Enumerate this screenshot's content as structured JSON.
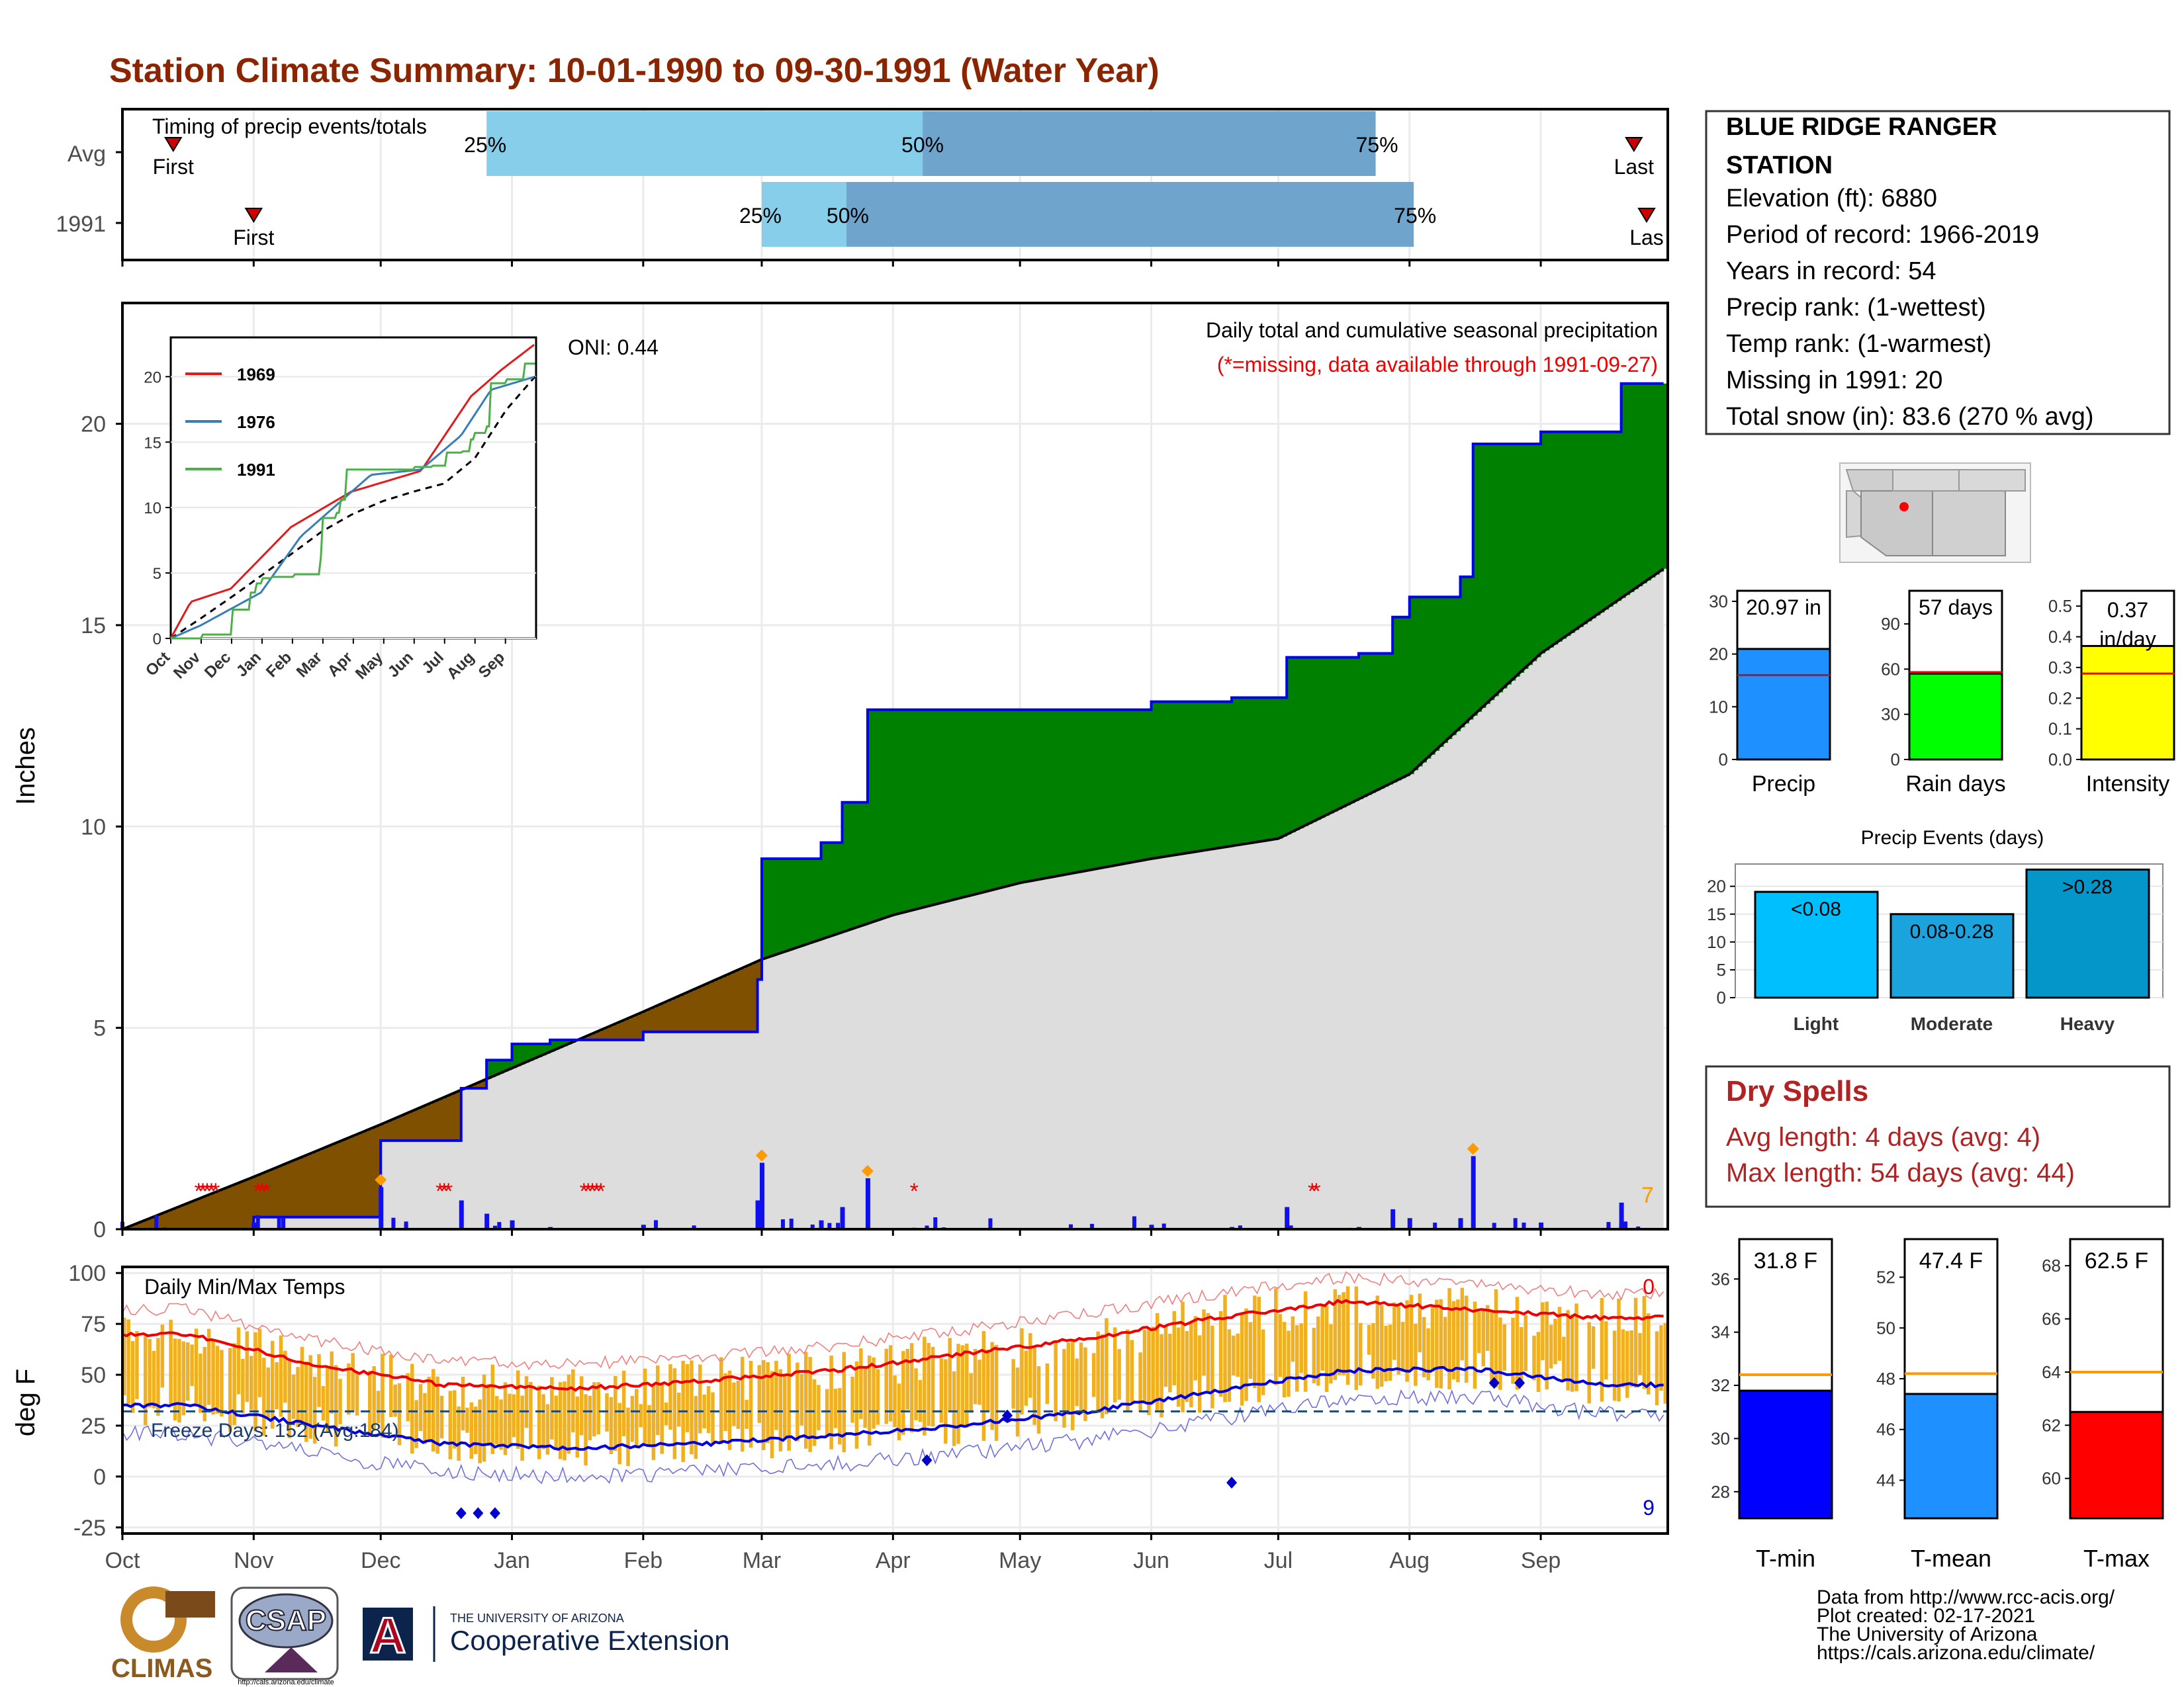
{
  "title": "Station Climate Summary: 10-01-1990 to 09-30-1991 (Water Year)",
  "colors": {
    "title": "#8b2500",
    "deficit": "#7f5000",
    "surplus": "#008000",
    "avg_cum": "#dddddd",
    "actual_cum": "#0000ee",
    "daily_bar": "#1010ee",
    "tmax_line": "#ee0000",
    "tmin_line": "#0000dd",
    "temp_bar": "#f0b020",
    "timing_light": "#87ceeb",
    "timing_dark": "#6fa5cd",
    "precip_box": "#1e90ff",
    "rain_box": "#00ff00",
    "intensity_box": "#ffff00",
    "light_evt": "#00bfff",
    "mod_evt": "#1aa3dd",
    "heavy_evt": "#0496c8",
    "tmin_box": "#0000ff",
    "tmean_box": "#1e90ff",
    "tmax_box": "#ff0000",
    "avg_line_bar": "#ff9900",
    "dry_spell": "#b22222"
  },
  "timing": {
    "title": "Timing of precip events/totals",
    "rows": [
      {
        "label": "Avg",
        "first_label": "First",
        "last_label": "Last",
        "first_date": "1990-10-13",
        "last_date": "1991-09-23",
        "p25_date": "1990-12-26",
        "p50_date": "1991-04-08",
        "p75_date": "1991-07-24",
        "p25": "25%",
        "p50": "50%",
        "p75": "75%"
      },
      {
        "label": "1991",
        "first_label": "First",
        "last_label": "Las",
        "first_date": "1990-11-01",
        "last_date": "1991-09-26",
        "p25_date": "1991-03-01",
        "p50_date": "1991-03-21",
        "p75_date": "1991-08-02",
        "p25": "25%",
        "p50": "50%",
        "p75": "75%"
      }
    ]
  },
  "precip_panel": {
    "ylabel": "Inches",
    "ylim": [
      0,
      23
    ],
    "yticks": [
      0,
      5,
      10,
      15,
      20
    ],
    "oni": "ONI: 0.44",
    "legend_title": "Daily total and cumulative seasonal precipitation",
    "missing_note": "(*=missing, data available through 1991-09-27)",
    "end_note": "7",
    "inset": {
      "years": [
        "1969",
        "1976",
        "1991"
      ],
      "year_colors": [
        "#e31a1c",
        "#377eb8",
        "#4daf4a"
      ],
      "ylim": [
        0,
        23
      ],
      "yticks": [
        "0",
        "5",
        "10",
        "15",
        "20"
      ],
      "xticks": [
        "Oct",
        "Nov",
        "Dec",
        "Jan",
        "Feb",
        "Mar",
        "Apr",
        "May",
        "Jun",
        "Jul",
        "Aug",
        "Sep"
      ]
    }
  },
  "temp_panel": {
    "ylabel": "deg F",
    "title": "Daily Min/Max Temps",
    "freeze_label": "Freeze Days: 152 (Avg:184)",
    "ylim": [
      -28,
      103
    ],
    "yticks": [
      -25,
      0,
      25,
      50,
      75,
      100
    ],
    "freeze_line": 32,
    "top_count": "0",
    "bottom_count": "9"
  },
  "x_months": [
    "Oct",
    "Nov",
    "Dec",
    "Jan",
    "Feb",
    "Mar",
    "Apr",
    "May",
    "Jun",
    "Jul",
    "Aug",
    "Sep"
  ],
  "station": {
    "name_line1": "BLUE RIDGE RANGER",
    "name_line2": "STATION",
    "elevation": "Elevation (ft): 6880",
    "period": "Period of record: 1966-2019",
    "years": "Years in record: 54",
    "precip_rank": "Precip rank:  (1-wettest)",
    "temp_rank": "Temp rank:  (1-warmest)",
    "missing": "Missing in 1991: 20",
    "snow": "Total snow (in): 83.6 (270 % avg)"
  },
  "summary_bars": [
    {
      "label": "Precip",
      "value_text": "20.97 in",
      "value": 20.97,
      "avg": 16.0,
      "ylim": [
        0,
        32
      ],
      "ticks": [
        "0",
        "10",
        "20",
        "30"
      ],
      "tickvals": [
        0,
        10,
        20,
        30
      ]
    },
    {
      "label": "Rain days",
      "value_text": "57 days",
      "value": 57,
      "avg": 58,
      "ylim": [
        0,
        112
      ],
      "ticks": [
        "0",
        "30",
        "60",
        "90"
      ],
      "tickvals": [
        0,
        30,
        60,
        90
      ]
    },
    {
      "label": "Intensity",
      "value_text_1": "0.37",
      "value_text_2": "in/day",
      "value": 0.37,
      "avg": 0.28,
      "ylim": [
        0,
        0.55
      ],
      "ticks": [
        "0.0",
        "0.1",
        "0.2",
        "0.3",
        "0.4",
        "0.5"
      ],
      "tickvals": [
        0,
        0.1,
        0.2,
        0.3,
        0.4,
        0.5
      ]
    }
  ],
  "events": {
    "title": "Precip Events (days)",
    "ylim": [
      0,
      24
    ],
    "ticks": [
      "0",
      "5",
      "10",
      "15",
      "20"
    ],
    "tickvals": [
      0,
      5,
      10,
      15,
      20
    ],
    "bars": [
      {
        "label": "Light",
        "text": "<0.08",
        "value": 19
      },
      {
        "label": "Moderate",
        "text": "0.08-0.28",
        "value": 15
      },
      {
        "label": "Heavy",
        "text": ">0.28",
        "value": 23
      }
    ]
  },
  "dry_spells": {
    "title": "Dry Spells",
    "avg": "Avg length: 4 days (avg: 4)",
    "max": "Max length: 54 days (avg: 44)"
  },
  "temp_boxes": [
    {
      "label": "T-min",
      "value_text": "31.8 F",
      "value": 31.8,
      "avg": 32.4,
      "ylim": [
        27,
        37.5
      ],
      "ticks": [
        "28",
        "30",
        "32",
        "34",
        "36"
      ],
      "tickvals": [
        28,
        30,
        32,
        34,
        36
      ]
    },
    {
      "label": "T-mean",
      "value_text": "47.4 F",
      "value": 47.4,
      "avg": 48.2,
      "ylim": [
        42.5,
        53.5
      ],
      "ticks": [
        "44",
        "46",
        "48",
        "50",
        "52"
      ],
      "tickvals": [
        44,
        46,
        48,
        50,
        52
      ]
    },
    {
      "label": "T-max",
      "value_text": "62.5 F",
      "value": 62.5,
      "avg": 64.0,
      "ylim": [
        58.5,
        69
      ],
      "ticks": [
        "60",
        "62",
        "64",
        "66",
        "68"
      ],
      "tickvals": [
        60,
        62,
        64,
        66,
        68
      ]
    }
  ],
  "credits": {
    "line1": "Data from http://www.rcc-acis.org/",
    "line2": "Plot created: 02-17-2021",
    "line3": "The University of Arizona",
    "line4": "https://cals.arizona.edu/climate/"
  },
  "logos": {
    "climas": "CLIMAS",
    "csap": "CSAP",
    "csap_url": "http://cals.arizona.edu/climate",
    "ua_small": "THE UNIVERSITY OF ARIZONA",
    "ua_ext": "Cooperative Extension",
    "ua_letter": "A"
  },
  "chart_data": [
    {
      "type": "area",
      "title": "Daily total and cumulative seasonal precipitation",
      "ylabel": "Inches",
      "ylim": [
        0,
        23
      ],
      "series": [
        {
          "name": "Cumulative",
          "x": [
            "1990-10-01",
            "1990-11-01",
            "1990-11-20",
            "1990-12-01",
            "1990-12-20",
            "1990-12-26",
            "1991-01-01",
            "1991-01-10",
            "1991-01-20",
            "1991-02-01",
            "1991-02-28",
            "1991-03-01",
            "1991-03-15",
            "1991-03-20",
            "1991-03-26",
            "1991-04-01",
            "1991-05-01",
            "1991-06-01",
            "1991-06-20",
            "1991-07-03",
            "1991-07-20",
            "1991-07-28",
            "1991-08-01",
            "1991-08-13",
            "1991-08-16",
            "1991-09-01",
            "1991-09-20",
            "1991-09-30"
          ],
          "values": [
            0,
            0.3,
            0.3,
            2.2,
            3.5,
            4.2,
            4.6,
            4.7,
            4.7,
            4.9,
            6.2,
            9.2,
            9.6,
            10.6,
            12.9,
            12.9,
            12.9,
            13.1,
            13.2,
            14.2,
            14.3,
            15.2,
            15.7,
            16.2,
            19.5,
            19.8,
            21.0,
            21.0
          ]
        },
        {
          "name": "Average",
          "x": [
            "1990-10-01",
            "1990-11-01",
            "1990-12-01",
            "1991-01-01",
            "1991-02-01",
            "1991-03-01",
            "1991-04-01",
            "1991-05-01",
            "1991-06-01",
            "1991-07-01",
            "1991-08-01",
            "1991-09-01",
            "1991-09-30"
          ],
          "values": [
            0,
            1.3,
            2.6,
            4.0,
            5.4,
            6.7,
            7.8,
            8.6,
            9.2,
            9.7,
            11.3,
            14.3,
            16.4
          ]
        }
      ]
    },
    {
      "type": "line",
      "title": "Daily Min/Max Temps",
      "ylabel": "deg F",
      "ylim": [
        -28,
        103
      ],
      "x": [
        "Oct",
        "Nov",
        "Dec",
        "Jan",
        "Feb",
        "Mar",
        "Apr",
        "May",
        "Jun",
        "Jul",
        "Aug",
        "Sep"
      ],
      "series": [
        {
          "name": "Avg Tmax",
          "values": [
            70,
            55,
            45,
            43,
            47,
            52,
            60,
            68,
            78,
            86,
            82,
            78
          ]
        },
        {
          "name": "Avg Tmin",
          "values": [
            35,
            25,
            16,
            14,
            16,
            20,
            25,
            32,
            42,
            52,
            53,
            45
          ]
        }
      ]
    }
  ]
}
